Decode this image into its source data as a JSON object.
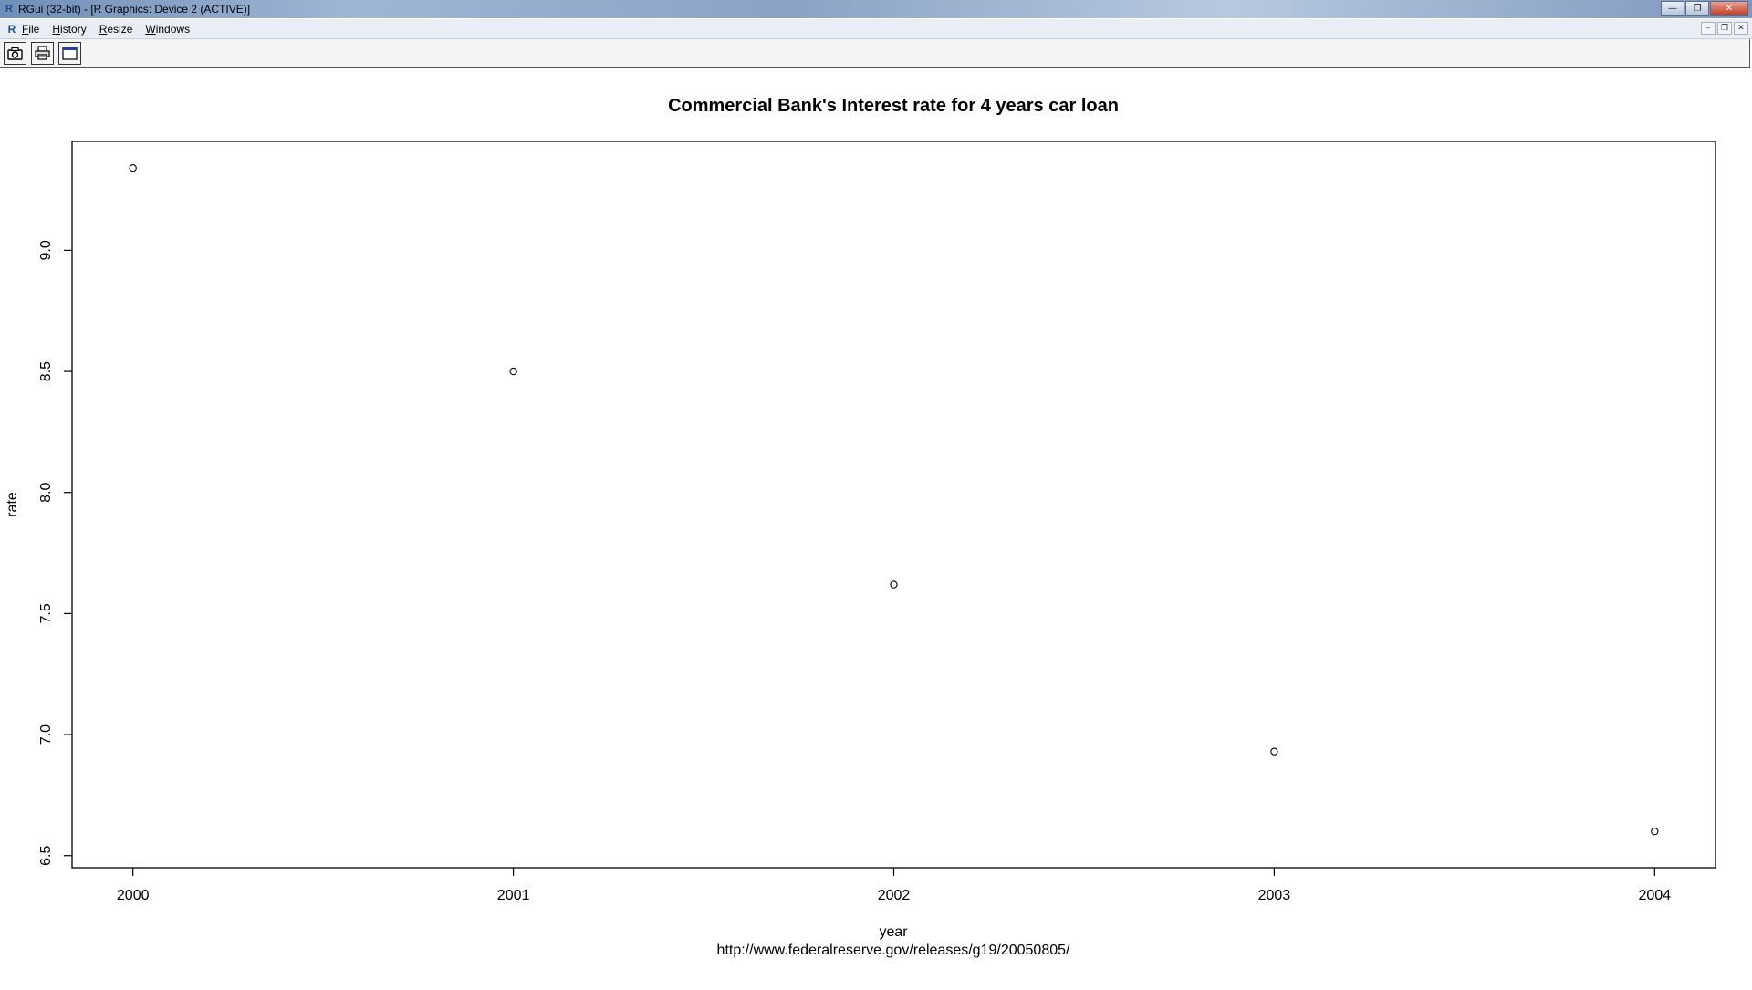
{
  "window": {
    "title": "RGui (32-bit) - [R Graphics: Device 2 (ACTIVE)]",
    "logo_letter": "R",
    "minimize_glyph": "—",
    "restore_glyph": "❐",
    "close_glyph": "✕"
  },
  "menubar": {
    "items": [
      "File",
      "History",
      "Resize",
      "Windows"
    ],
    "mdi_minimize": "–",
    "mdi_restore": "❐",
    "mdi_close": "✕"
  },
  "toolbar": {
    "icons": [
      "copy-to-clipboard-icon",
      "print-icon",
      "new-window-icon"
    ]
  },
  "chart_data": {
    "type": "scatter",
    "title": "Commercial Bank's Interest rate for 4 years car loan",
    "xlabel": "year",
    "ylabel": "rate",
    "caption": "http://www.federalreserve.gov/releases/g19/20050805/",
    "x": [
      2000,
      2001,
      2002,
      2003,
      2004
    ],
    "y": [
      9.34,
      8.5,
      7.62,
      6.93,
      6.6
    ],
    "xlim": [
      1999.84,
      2004.16
    ],
    "ylim": [
      6.45,
      9.45
    ],
    "xticks": [
      2000,
      2001,
      2002,
      2003,
      2004
    ],
    "yticks": [
      6.5,
      7.0,
      7.5,
      8.0,
      8.5,
      9.0
    ],
    "ytick_labels": [
      "6.5",
      "7.0",
      "7.5",
      "8.0",
      "8.5",
      "9.0"
    ],
    "grid": false,
    "marker": "open-circle"
  }
}
